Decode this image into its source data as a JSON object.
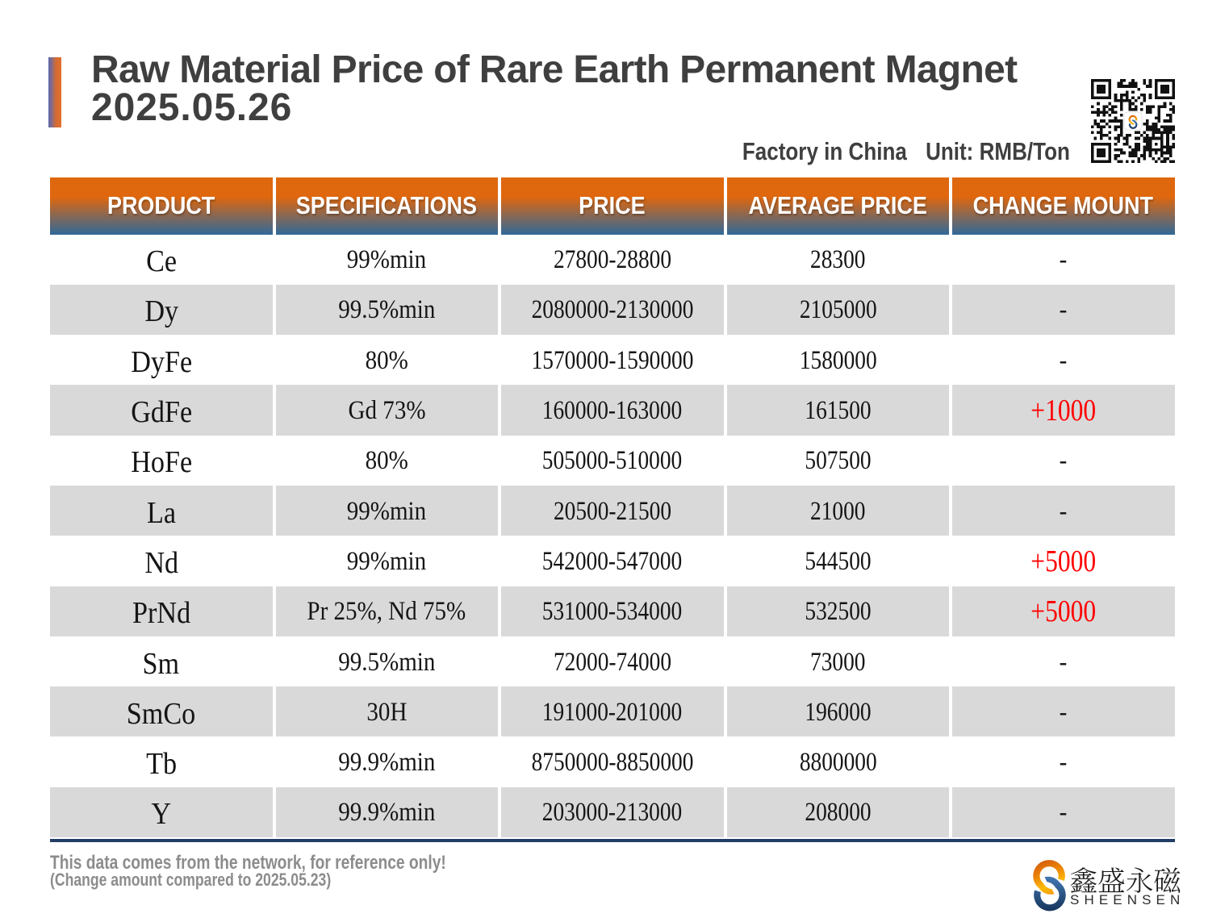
{
  "page": {
    "background": "#ffffff"
  },
  "header": {
    "title_line1": "Raw Material Price of Rare Earth Permanent Magnet",
    "title_line2": "2025.05.26",
    "origin_label": "Factory in China",
    "unit_label": "Unit: RMB/Ton"
  },
  "table": {
    "columns": [
      "PRODUCT",
      "SPECIFICATIONS",
      "PRICE",
      "AVERAGE PRICE",
      "CHANGE MOUNT"
    ],
    "rows": [
      {
        "product": "Ce",
        "specifications": "99%min",
        "price": "27800-28800",
        "average_price": "28300",
        "change": "-",
        "change_is_increase": false
      },
      {
        "product": "Dy",
        "specifications": "99.5%min",
        "price": "2080000-2130000",
        "average_price": "2105000",
        "change": "-",
        "change_is_increase": false
      },
      {
        "product": "DyFe",
        "specifications": "80%",
        "price": "1570000-1590000",
        "average_price": "1580000",
        "change": "-",
        "change_is_increase": false
      },
      {
        "product": "GdFe",
        "specifications": "Gd 73%",
        "price": "160000-163000",
        "average_price": "161500",
        "change": "+1000",
        "change_is_increase": true
      },
      {
        "product": "HoFe",
        "specifications": "80%",
        "price": "505000-510000",
        "average_price": "507500",
        "change": "-",
        "change_is_increase": false
      },
      {
        "product": "La",
        "specifications": "99%min",
        "price": "20500-21500",
        "average_price": "21000",
        "change": "-",
        "change_is_increase": false
      },
      {
        "product": "Nd",
        "specifications": "99%min",
        "price": "542000-547000",
        "average_price": "544500",
        "change": "+5000",
        "change_is_increase": true
      },
      {
        "product": "PrNd",
        "specifications": "Pr 25%, Nd 75%",
        "price": "531000-534000",
        "average_price": "532500",
        "change": "+5000",
        "change_is_increase": true
      },
      {
        "product": "Sm",
        "specifications": "99.5%min",
        "price": "72000-74000",
        "average_price": "73000",
        "change": "-",
        "change_is_increase": false
      },
      {
        "product": "SmCo",
        "specifications": "30H",
        "price": "191000-201000",
        "average_price": "196000",
        "change": "-",
        "change_is_increase": false
      },
      {
        "product": "Tb",
        "specifications": "99.9%min",
        "price": "8750000-8850000",
        "average_price": "8800000",
        "change": "-",
        "change_is_increase": false
      },
      {
        "product": "Y",
        "specifications": "99.9%min",
        "price": "203000-213000",
        "average_price": "208000",
        "change": "-",
        "change_is_increase": false
      }
    ]
  },
  "footer": {
    "note_line1": "This data comes from the network, for reference only!",
    "note_line2": "(Change amount compared to 2025.05.23)"
  },
  "branding": {
    "company_name_cn": "鑫盛永磁",
    "company_name_en": "SHEENSEN",
    "qr_code": "qr-code-with-sheensen-logo"
  },
  "colors": {
    "header_orange": "#DF670E",
    "header_blue": "#30689A",
    "row_alt_gray": "#D9D9D9",
    "increase_red": "#FF0000",
    "table_bottom_rule": "#223D66",
    "title_gray": "#3F3F3F",
    "footer_gray": "#8C8C8C",
    "logo_orange": "#E87C1E",
    "logo_blue": "#2A5B96"
  }
}
